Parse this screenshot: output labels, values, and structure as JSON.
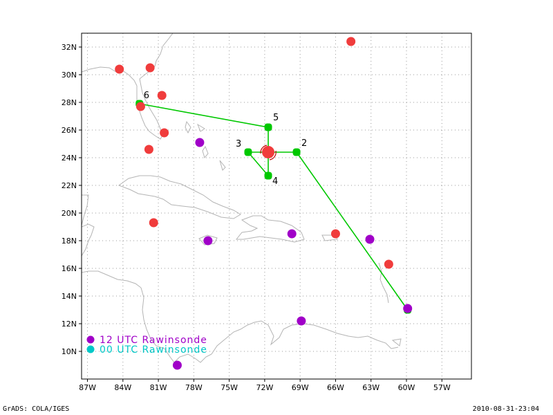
{
  "map": {
    "lon_range": [
      -87.5,
      -54.5
    ],
    "lat_range": [
      8,
      33
    ],
    "x_ticks": [
      {
        "lon": -87,
        "label": "87W"
      },
      {
        "lon": -84,
        "label": "84W"
      },
      {
        "lon": -81,
        "label": "81W"
      },
      {
        "lon": -78,
        "label": "78W"
      },
      {
        "lon": -75,
        "label": "75W"
      },
      {
        "lon": -72,
        "label": "72W"
      },
      {
        "lon": -69,
        "label": "69W"
      },
      {
        "lon": -66,
        "label": "66W"
      },
      {
        "lon": -63,
        "label": "63W"
      },
      {
        "lon": -60,
        "label": "60W"
      },
      {
        "lon": -57,
        "label": "57W"
      }
    ],
    "y_ticks": [
      {
        "lat": 10,
        "label": "10N"
      },
      {
        "lat": 12,
        "label": "12N"
      },
      {
        "lat": 14,
        "label": "14N"
      },
      {
        "lat": 16,
        "label": "16N"
      },
      {
        "lat": 18,
        "label": "18N"
      },
      {
        "lat": 20,
        "label": "20N"
      },
      {
        "lat": 22,
        "label": "22N"
      },
      {
        "lat": 24,
        "label": "24N"
      },
      {
        "lat": 26,
        "label": "26N"
      },
      {
        "lat": 28,
        "label": "28N"
      },
      {
        "lat": 30,
        "label": "30N"
      },
      {
        "lat": 32,
        "label": "32N"
      }
    ],
    "grid": true,
    "colors": {
      "coast": "#b4b4b4",
      "grid": "#9a9a9a",
      "track": "#00c800",
      "red_station": "#f03c3c",
      "purple_station": "#a000c8",
      "cyan_station": "#00c8c8",
      "center": "#f03c3c",
      "center_ring": "#c00000"
    },
    "track_points": [
      {
        "label": "",
        "lon": -71.7,
        "lat": 24.4
      },
      {
        "label": "2",
        "lon": -69.3,
        "lat": 24.4
      },
      {
        "label": "",
        "lon": -59.9,
        "lat": 13.0
      },
      {
        "label": "3",
        "lon": -73.4,
        "lat": 24.4
      },
      {
        "label": "4",
        "lon": -71.7,
        "lat": 22.7
      },
      {
        "label": "5",
        "lon": -71.7,
        "lat": 26.2
      },
      {
        "label": "6",
        "lon": -82.6,
        "lat": 27.9
      }
    ],
    "track_segments": [
      [
        0,
        1
      ],
      [
        1,
        2
      ],
      [
        0,
        3
      ],
      [
        3,
        4
      ],
      [
        4,
        0
      ],
      [
        0,
        5
      ],
      [
        5,
        6
      ]
    ],
    "center_point": {
      "lon": -71.7,
      "lat": 24.4
    },
    "red_stations": [
      {
        "lon": -64.7,
        "lat": 32.4
      },
      {
        "lon": -84.3,
        "lat": 30.4
      },
      {
        "lon": -81.7,
        "lat": 30.5
      },
      {
        "lon": -80.7,
        "lat": 28.5
      },
      {
        "lon": -82.5,
        "lat": 27.7
      },
      {
        "lon": -80.5,
        "lat": 25.8
      },
      {
        "lon": -81.8,
        "lat": 24.6
      },
      {
        "lon": -81.4,
        "lat": 19.3
      },
      {
        "lon": -66.0,
        "lat": 18.5
      },
      {
        "lon": -61.5,
        "lat": 16.3
      }
    ],
    "purple_stations": [
      {
        "lon": -77.5,
        "lat": 25.1
      },
      {
        "lon": -76.8,
        "lat": 18.0
      },
      {
        "lon": -69.7,
        "lat": 18.5
      },
      {
        "lon": -63.1,
        "lat": 18.1
      },
      {
        "lon": -59.9,
        "lat": 13.1
      },
      {
        "lon": -68.9,
        "lat": 12.2
      },
      {
        "lon": -79.4,
        "lat": 9.0
      }
    ],
    "legend": [
      {
        "label": "12 UTC Rawinsonde",
        "color": "#a000c8"
      },
      {
        "label": "00 UTC Rawinsonde",
        "color": "#00c8c8"
      }
    ]
  },
  "footer": {
    "left": "GrADS: COLA/IGES",
    "right": "2010-08-31-23:04"
  }
}
